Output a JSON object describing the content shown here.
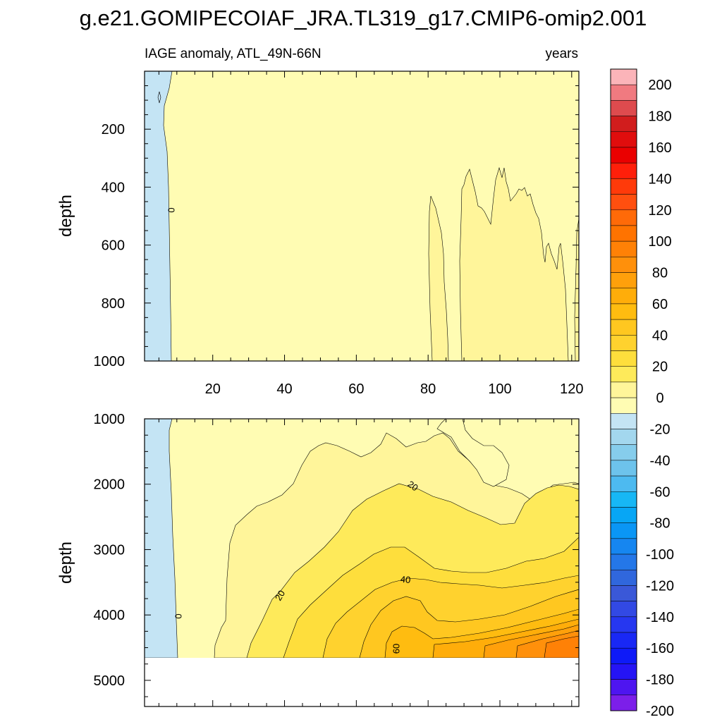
{
  "title": "g.e21.GOMIPECOIAF_JRA.TL319_g17.CMIP6-omip2.001",
  "chart_data": [
    {
      "type": "contour",
      "panel": "upper",
      "left_string": "IAGE anomaly, ATL_49N-66N",
      "right_string": "years",
      "xlabel": "",
      "ylabel": "depth",
      "xlim": [
        1,
        122
      ],
      "ylim": [
        0,
        1000
      ],
      "y_inverted": true,
      "x_ticks": [
        "20",
        "40",
        "60",
        "80",
        "100",
        "120"
      ],
      "y_ticks": [
        "200",
        "400",
        "600",
        "800",
        "1000"
      ],
      "contour_labels": [
        "0"
      ]
    },
    {
      "type": "contour",
      "panel": "lower",
      "xlabel": "",
      "ylabel": "depth",
      "xlim": [
        1,
        122
      ],
      "ylim": [
        1000,
        5400
      ],
      "y_inverted": true,
      "x_ticks": [
        "20",
        "40",
        "60",
        "80",
        "100",
        "120"
      ],
      "y_ticks": [
        "1000",
        "2000",
        "3000",
        "4000",
        "5000"
      ],
      "contour_labels": [
        "0",
        "20",
        "20",
        "40",
        "60"
      ]
    }
  ],
  "colorbar": {
    "labels": [
      "200",
      "180",
      "160",
      "140",
      "120",
      "100",
      "80",
      "60",
      "40",
      "20",
      "0",
      "-20",
      "-40",
      "-60",
      "-80",
      "-100",
      "-120",
      "-140",
      "-160",
      "-180",
      "-200"
    ],
    "colors": [
      "#fbb4b9",
      "#f07a80",
      "#de4b4e",
      "#d11d1d",
      "#e00d0d",
      "#ea0000",
      "#ff1f0a",
      "#ff3a0a",
      "#ff4f0f",
      "#ff6a08",
      "#ff7300",
      "#ff8106",
      "#ff900b",
      "#ffa00b",
      "#ffad0a",
      "#ffbc10",
      "#ffc720",
      "#ffd22e",
      "#fede3c",
      "#feea5a",
      "#fff59a",
      "#fffcb3",
      "#c4e4f4",
      "#a3d7ee",
      "#86cdec",
      "#6dc3ec",
      "#4dbaf0",
      "#17b7f5",
      "#07a6f5",
      "#0a96f5",
      "#1686f0",
      "#2477e8",
      "#3067dd",
      "#3a58d8",
      "#3249e4",
      "#2637f0",
      "#1928f5",
      "#0e1af8",
      "#2514f5",
      "#4e15f0",
      "#7c1fe9"
    ]
  }
}
